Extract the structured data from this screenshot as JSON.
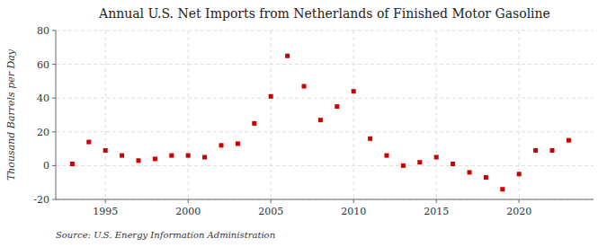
{
  "chart_data": {
    "type": "scatter",
    "title": "Annual U.S. Net Imports from Netherlands of Finished Motor Gasoline",
    "ylabel": "Thousand Barrels per Day",
    "source": "Source: U.S. Energy Information Administration",
    "x": [
      1993,
      1994,
      1995,
      1996,
      1997,
      1998,
      1999,
      2000,
      2001,
      2002,
      2003,
      2004,
      2005,
      2006,
      2007,
      2008,
      2009,
      2010,
      2011,
      2012,
      2013,
      2014,
      2015,
      2016,
      2017,
      2018,
      2019,
      2020,
      2021,
      2022,
      2023
    ],
    "values": [
      1,
      14,
      9,
      6,
      3,
      4,
      6,
      6,
      5,
      12,
      13,
      25,
      41,
      65,
      47,
      27,
      35,
      44,
      16,
      6,
      0,
      2,
      5,
      1,
      -4,
      -7,
      -14,
      -5,
      9,
      9,
      15
    ],
    "color": "#cc0000",
    "marker": "square",
    "xlim": [
      1992.0,
      2024.5
    ],
    "ylim": [
      -20,
      80
    ],
    "xticks": [
      1995,
      2000,
      2005,
      2010,
      2015,
      2020
    ],
    "yticks": [
      -20,
      0,
      20,
      40,
      60,
      80
    ],
    "grid": true
  }
}
